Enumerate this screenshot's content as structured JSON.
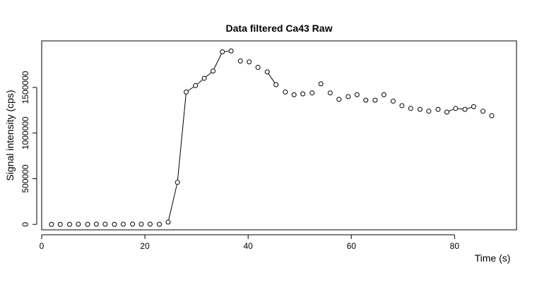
{
  "chart_data": {
    "type": "scatter",
    "title": "Data filtered Ca43 Raw",
    "xlabel": "Time (s)",
    "ylabel": "Signal intensity (cps)",
    "xlim": [
      0,
      92
    ],
    "ylim": [
      -60000,
      2010000
    ],
    "x_ticks": [
      0,
      20,
      40,
      60,
      80
    ],
    "x_tick_labels": [
      "0",
      "20",
      "40",
      "60",
      "80"
    ],
    "y_ticks": [
      0,
      500000,
      1000000,
      1500000
    ],
    "y_tick_labels": [
      "0",
      "500000",
      "1000000",
      "1500000"
    ],
    "grid": false,
    "marker": "open-circle",
    "series": [
      {
        "x": [
          1.9,
          3.6,
          5.4,
          7.1,
          8.9,
          10.6,
          12.3,
          14.1,
          15.8,
          17.6,
          19.3,
          21.0,
          22.8,
          24.5,
          26.3,
          28.0,
          29.8,
          31.5,
          33.2,
          35.0,
          36.7,
          38.5,
          40.2,
          41.9,
          43.7,
          45.4,
          47.2,
          48.9,
          50.6,
          52.4,
          54.1,
          55.9,
          57.6,
          59.4,
          61.1,
          62.8,
          64.6,
          66.3,
          68.1,
          69.8,
          71.5,
          73.3,
          75.0,
          76.8,
          78.5,
          80.2,
          82.0,
          83.7,
          85.5,
          87.2
        ],
        "y": [
          0,
          0,
          0,
          2000,
          0,
          3000,
          2000,
          0,
          2000,
          3000,
          2000,
          2000,
          1000,
          25000,
          460000,
          1450000,
          1520000,
          1600000,
          1680000,
          1890000,
          1900000,
          1790000,
          1780000,
          1720000,
          1670000,
          1530000,
          1450000,
          1420000,
          1430000,
          1440000,
          1540000,
          1440000,
          1370000,
          1400000,
          1420000,
          1360000,
          1360000,
          1420000,
          1350000,
          1300000,
          1270000,
          1260000,
          1240000,
          1260000,
          1230000,
          1270000,
          1260000,
          1290000,
          1240000,
          1190000
        ],
        "line_segments": [
          [
            13,
            20
          ],
          [
            24,
            25
          ],
          [
            44,
            47
          ]
        ]
      }
    ]
  }
}
